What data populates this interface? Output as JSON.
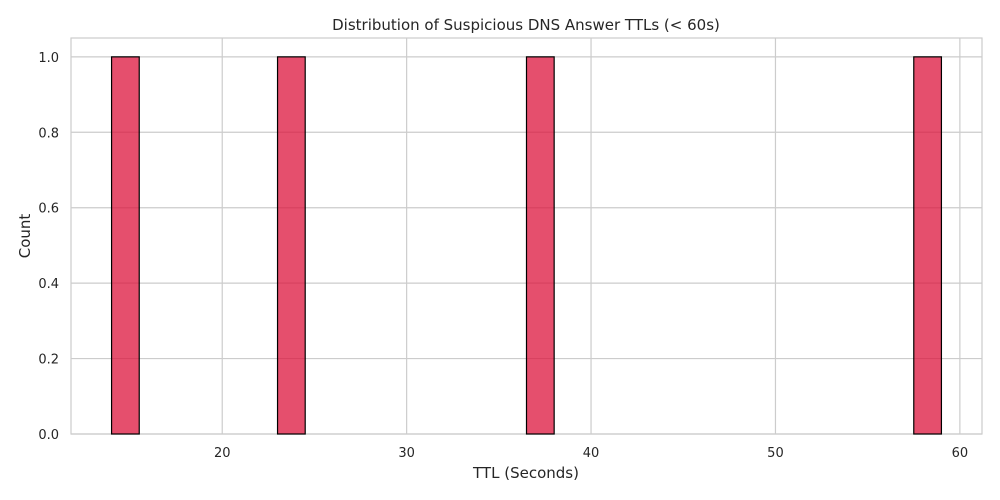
{
  "chart_data": {
    "type": "bar",
    "title": "Distribution of Suspicious DNS Answer TTLs (< 60s)",
    "xlabel": "TTL (Seconds)",
    "ylabel": "Count",
    "xlim": [
      11.8,
      61.2
    ],
    "ylim": [
      0,
      1.05
    ],
    "xticks": [
      20,
      30,
      40,
      50,
      60
    ],
    "yticks": [
      0.0,
      0.2,
      0.4,
      0.6,
      0.8,
      1.0
    ],
    "ytick_labels": [
      "0.0",
      "0.2",
      "0.4",
      "0.6",
      "0.8",
      "1.0"
    ],
    "bins": [
      {
        "x0": 14.0,
        "x1": 15.5,
        "count": 1
      },
      {
        "x0": 23.0,
        "x1": 24.5,
        "count": 1
      },
      {
        "x0": 36.5,
        "x1": 38.0,
        "count": 1
      },
      {
        "x0": 57.5,
        "x1": 59.0,
        "count": 1
      }
    ],
    "bar_color": "#dc143c",
    "bar_edge_color": "#000000",
    "grid": true,
    "legend": "none"
  }
}
